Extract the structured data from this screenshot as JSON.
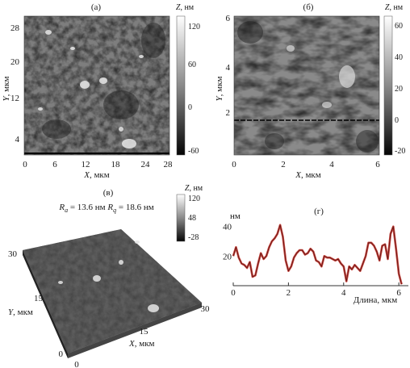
{
  "panels": {
    "a": {
      "label": "(а)",
      "x_ticks": [
        "0",
        "6",
        "12",
        "18",
        "24",
        "28"
      ],
      "y_ticks": [
        "4",
        "12",
        "20",
        "28"
      ],
      "x_axis": {
        "var": "X",
        "unit": ", мкм"
      },
      "y_axis": {
        "var": "Y",
        "unit": ", мкм"
      },
      "colorbar": {
        "var": "Z",
        "unit": ", нм",
        "ticks": [
          "120",
          "60",
          "0",
          "-60"
        ]
      }
    },
    "b": {
      "label": "(б)",
      "x_ticks": [
        "0",
        "2",
        "4",
        "6"
      ],
      "y_ticks": [
        "2",
        "4",
        "6"
      ],
      "x_axis": {
        "var": "X",
        "unit": ", мкм"
      },
      "y_axis": {
        "var": "Y",
        "unit": ", мкм"
      },
      "colorbar": {
        "var": "Z",
        "unit": ", нм",
        "ticks": [
          "60",
          "40",
          "20",
          "0",
          "-20"
        ]
      }
    },
    "c": {
      "label": "(в)",
      "roughness": {
        "ra_sym": "R",
        "ra_sub": "a",
        "ra_value": " = 13.6 нм ",
        "rq_sym": "R",
        "rq_sub": "q",
        "rq_value": " = 18.6 нм"
      },
      "colorbar": {
        "var": "Z",
        "unit": ", нм",
        "ticks": [
          "120",
          "48",
          "-28"
        ]
      },
      "y_ticks": [
        "30",
        "15",
        "0"
      ],
      "x_ticks": [
        "0",
        "15",
        "30"
      ],
      "x_axis": {
        "var": "X",
        "unit": ", мкм"
      },
      "y_axis": {
        "var": "Y",
        "unit": ", мкм"
      }
    },
    "d": {
      "label": "(г)",
      "y_unit": "нм",
      "x_label": "Длина, мкм",
      "chart_data": {
        "type": "line",
        "x": [
          0,
          0.1,
          0.2,
          0.3,
          0.4,
          0.5,
          0.6,
          0.7,
          0.8,
          0.9,
          1.0,
          1.1,
          1.2,
          1.3,
          1.4,
          1.5,
          1.6,
          1.7,
          1.8,
          1.9,
          2.0,
          2.1,
          2.2,
          2.3,
          2.4,
          2.5,
          2.6,
          2.7,
          2.8,
          2.9,
          3.0,
          3.1,
          3.2,
          3.3,
          3.4,
          3.5,
          3.6,
          3.7,
          3.8,
          3.9,
          4.0,
          4.1,
          4.2,
          4.3,
          4.4,
          4.5,
          4.6,
          4.7,
          4.8,
          4.9,
          5.0,
          5.1,
          5.2,
          5.3,
          5.4,
          5.5,
          5.6,
          5.7,
          5.8,
          5.9,
          6.0,
          6.1
        ],
        "y": [
          20,
          26,
          19,
          15,
          14,
          12,
          16,
          6,
          7,
          15,
          22,
          18,
          20,
          26,
          30,
          32,
          35,
          41,
          33,
          17,
          10,
          13,
          19,
          22,
          24,
          24,
          21,
          22,
          25,
          23,
          17,
          16,
          13,
          20,
          19,
          19,
          18,
          17,
          18,
          15,
          13,
          3,
          13,
          11,
          14,
          12,
          10,
          15,
          20,
          29,
          29,
          27,
          23,
          17,
          27,
          28,
          18,
          35,
          40,
          25,
          8,
          1
        ],
        "xlim": [
          0,
          6.2
        ],
        "ylim": [
          0,
          48
        ],
        "x_ticks": [
          "0",
          "2",
          "4",
          "6"
        ],
        "y_ticks": [
          "20",
          "40"
        ],
        "colors": {
          "outer": "#c8453e",
          "inner": "#5a1412"
        }
      }
    }
  }
}
